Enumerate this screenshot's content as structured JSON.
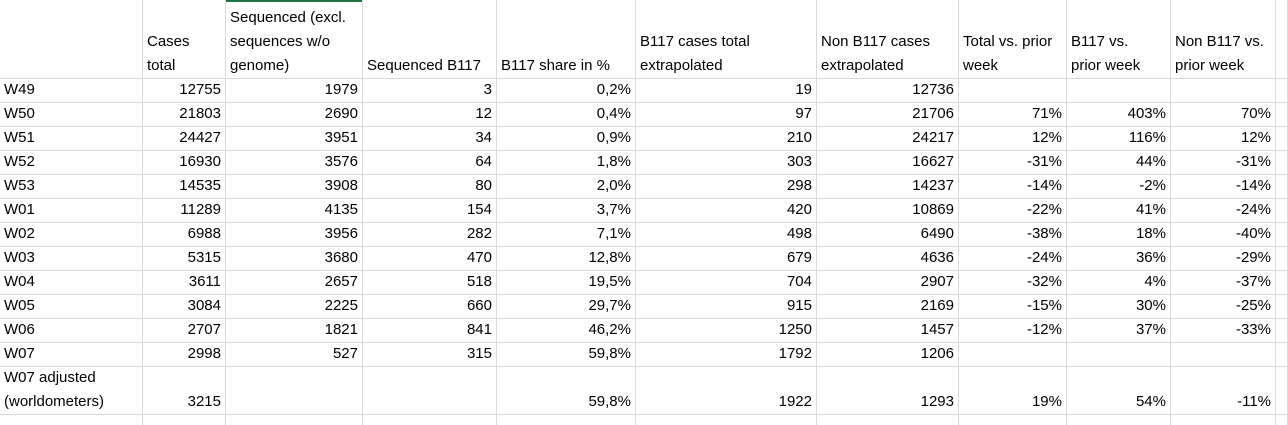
{
  "table": {
    "header": [
      null,
      [
        "Cases",
        "total"
      ],
      [
        "Sequenced (excl.",
        "sequences w/o",
        "genome)"
      ],
      [
        "Sequenced B117"
      ],
      [
        "B117 share in %"
      ],
      [
        "B117 cases total",
        "extrapolated"
      ],
      [
        "Non B117 cases",
        "extrapolated"
      ],
      [
        "Total vs. prior",
        "week"
      ],
      [
        "B117 vs.",
        "prior week"
      ],
      [
        "Non B117 vs.",
        "prior week"
      ]
    ],
    "rows": [
      [
        "W49",
        12755,
        1979,
        3,
        "0,2%",
        19,
        12736,
        null,
        null,
        null
      ],
      [
        "W50",
        21803,
        2690,
        12,
        "0,4%",
        97,
        21706,
        "71%",
        "403%",
        "70%"
      ],
      [
        "W51",
        24427,
        3951,
        34,
        "0,9%",
        210,
        24217,
        "12%",
        "116%",
        "12%"
      ],
      [
        "W52",
        16930,
        3576,
        64,
        "1,8%",
        303,
        16627,
        "-31%",
        "44%",
        "-31%"
      ],
      [
        "W53",
        14535,
        3908,
        80,
        "2,0%",
        298,
        14237,
        "-14%",
        "-2%",
        "-14%"
      ],
      [
        "W01",
        11289,
        4135,
        154,
        "3,7%",
        420,
        10869,
        "-22%",
        "41%",
        "-24%"
      ],
      [
        "W02",
        6988,
        3956,
        282,
        "7,1%",
        498,
        6490,
        "-38%",
        "18%",
        "-40%"
      ],
      [
        "W03",
        5315,
        3680,
        470,
        "12,8%",
        679,
        4636,
        "-24%",
        "36%",
        "-29%"
      ],
      [
        "W04",
        3611,
        2657,
        518,
        "19,5%",
        704,
        2907,
        "-32%",
        "4%",
        "-37%"
      ],
      [
        "W05",
        3084,
        2225,
        660,
        "29,7%",
        915,
        2169,
        "-15%",
        "30%",
        "-25%"
      ],
      [
        "W06",
        2707,
        1821,
        841,
        "46,2%",
        1250,
        1457,
        "-12%",
        "37%",
        "-33%"
      ],
      [
        "W07",
        2998,
        527,
        315,
        "59,8%",
        1792,
        1206,
        null,
        null,
        null
      ],
      [
        "W07 adjusted (worldometers)",
        3215,
        null,
        null,
        "59,8%",
        1922,
        1293,
        "19%",
        "54%",
        "-11%"
      ]
    ]
  }
}
